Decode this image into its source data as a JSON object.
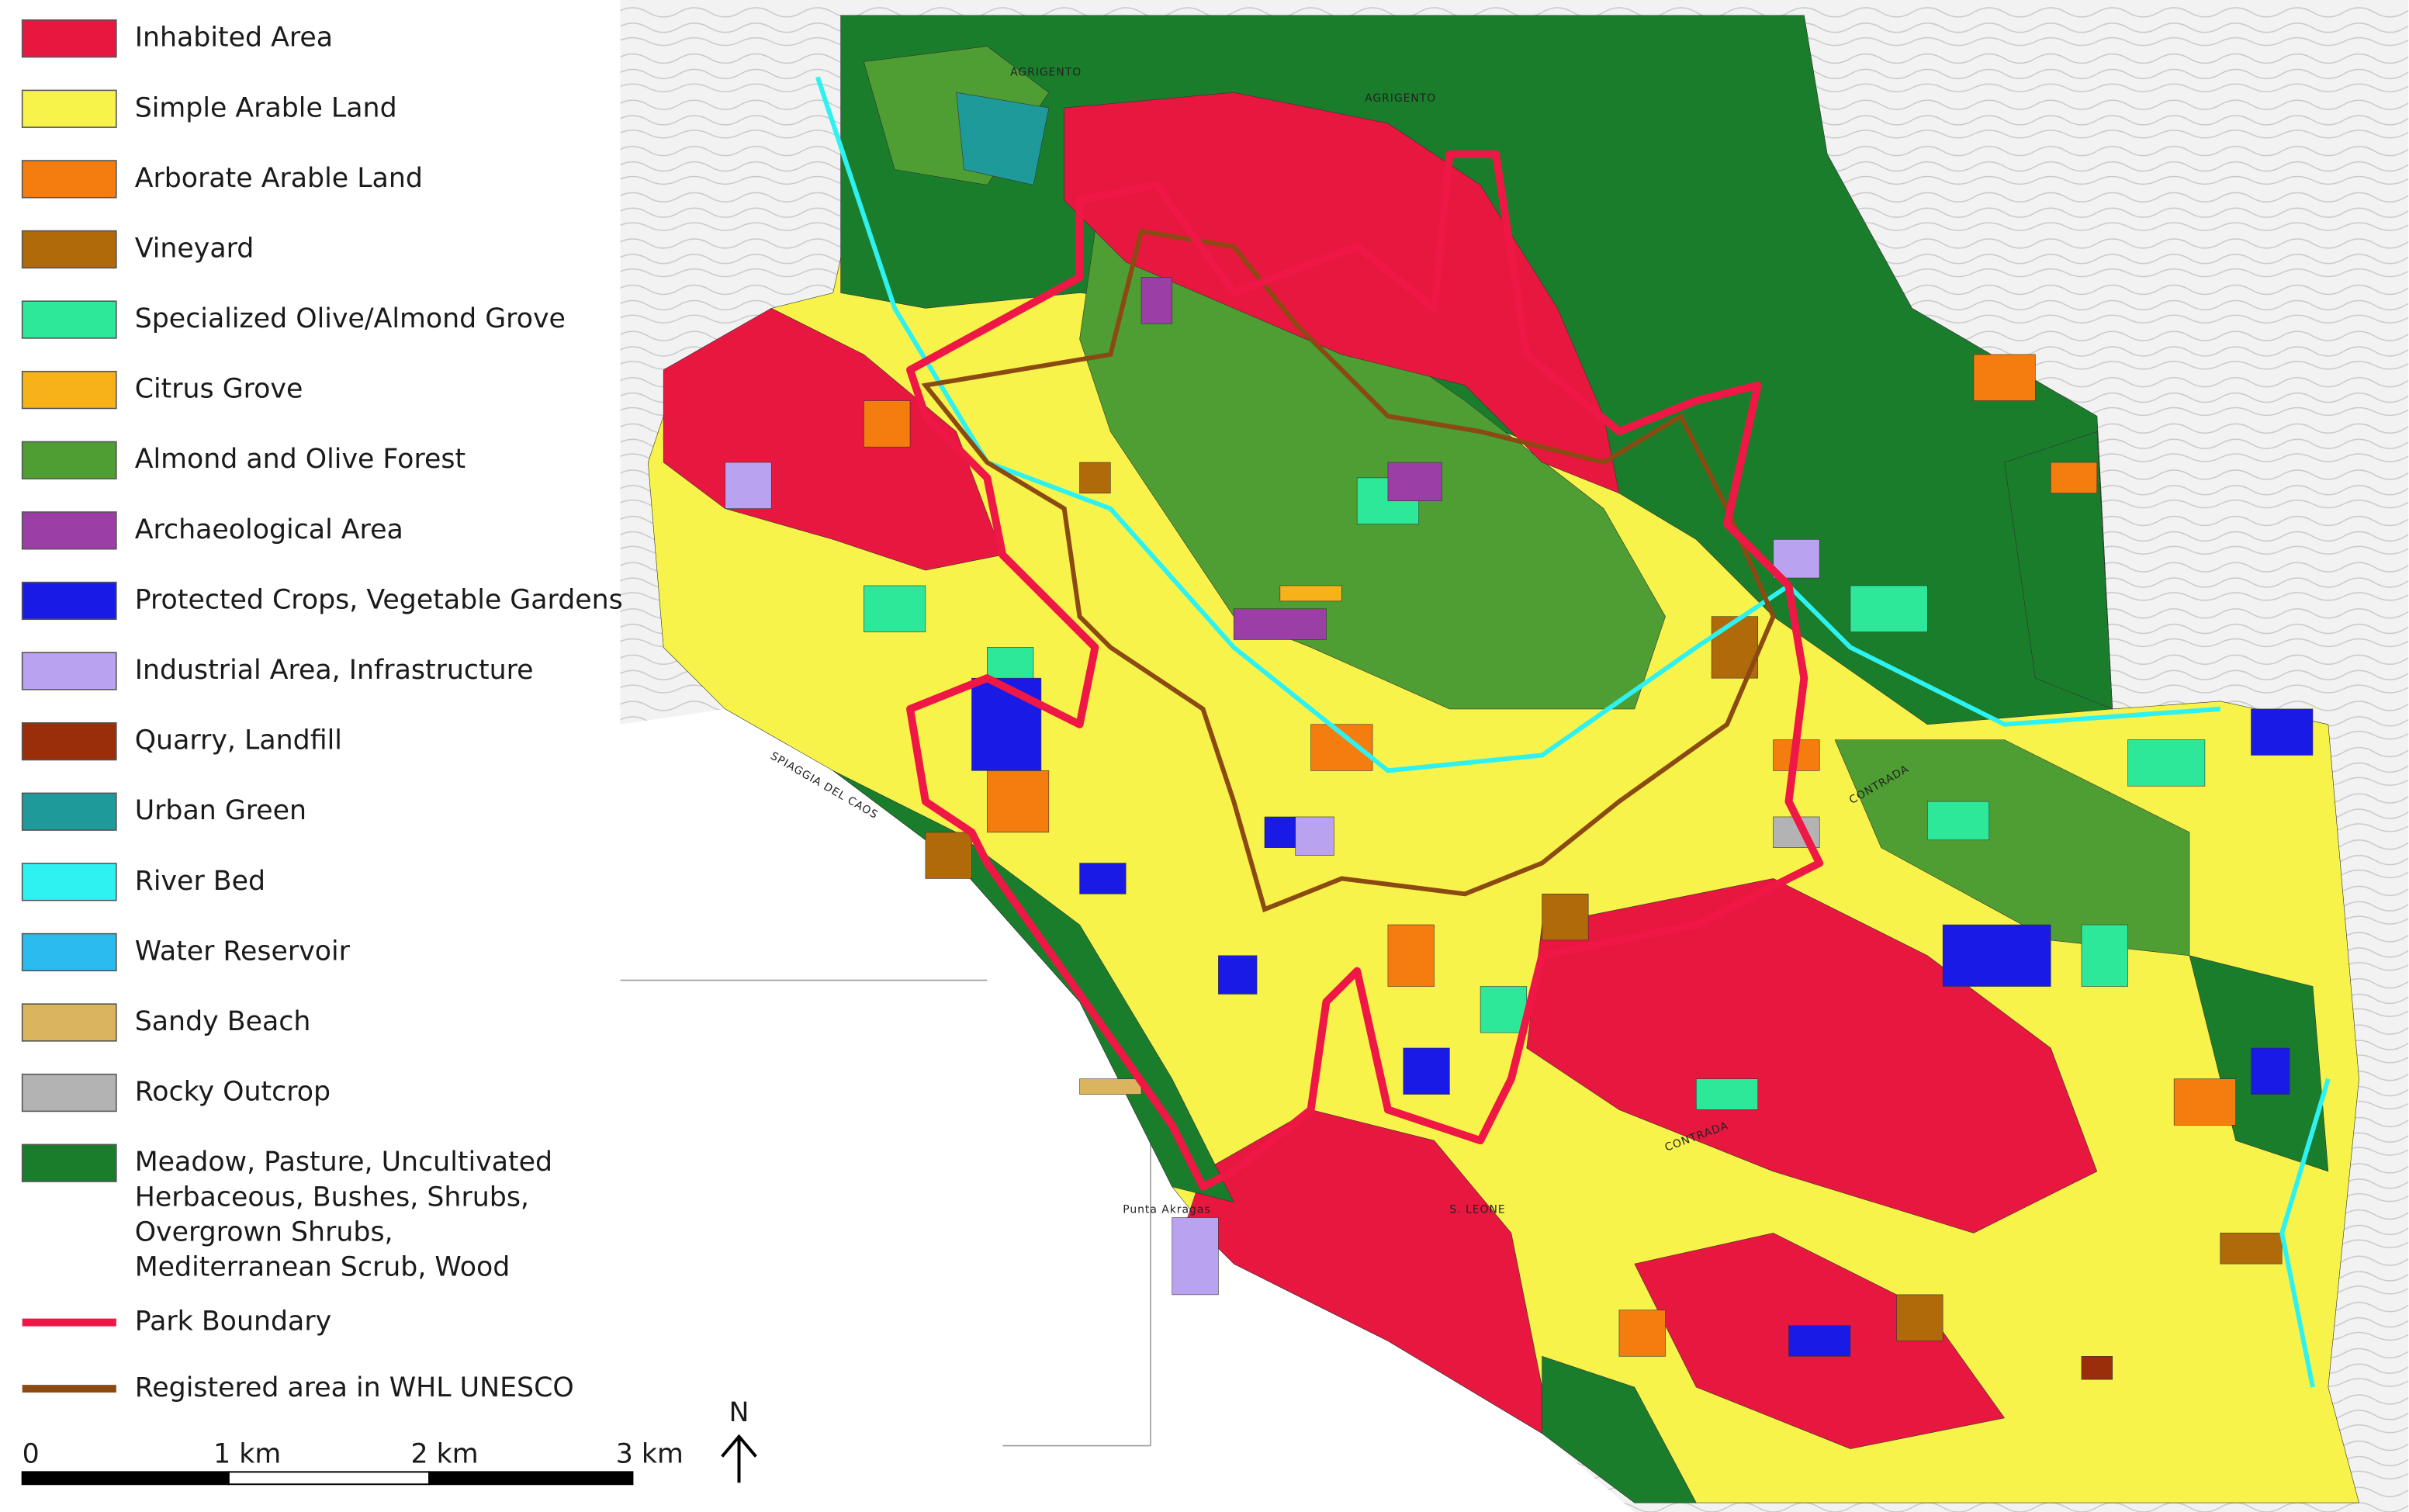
{
  "legend": {
    "items": [
      {
        "label": "Inhabited Area",
        "color": "#e8173f",
        "kind": "area"
      },
      {
        "label": "Simple Arable Land",
        "color": "#f7f34a",
        "kind": "area"
      },
      {
        "label": "Arborate Arable Land",
        "color": "#f57c0f",
        "kind": "area"
      },
      {
        "label": "Vineyard",
        "color": "#b06a0a",
        "kind": "area"
      },
      {
        "label": "Specialized Olive/Almond Grove",
        "color": "#2ee89a",
        "kind": "area"
      },
      {
        "label": "Citrus Grove",
        "color": "#f7b21a",
        "kind": "area"
      },
      {
        "label": "Almond and Olive Forest",
        "color": "#4e9e33",
        "kind": "area"
      },
      {
        "label": "Archaeological Area",
        "color": "#9b3fa6",
        "kind": "area"
      },
      {
        "label": "Protected Crops, Vegetable Gardens",
        "color": "#1a1ae6",
        "kind": "area"
      },
      {
        "label": "Industrial Area, Infrastructure",
        "color": "#b9a2f0",
        "kind": "area"
      },
      {
        "label": "Quarry, Landfill",
        "color": "#9a2d0a",
        "kind": "area"
      },
      {
        "label": "Urban Green",
        "color": "#1f9a9a",
        "kind": "area"
      },
      {
        "label": "River Bed",
        "color": "#2ef2f2",
        "kind": "area"
      },
      {
        "label": "Water Reservoir",
        "color": "#2abcee",
        "kind": "area"
      },
      {
        "label": "Sandy Beach",
        "color": "#dbb45e",
        "kind": "area"
      },
      {
        "label": "Rocky Outcrop",
        "color": "#b3b3b3",
        "kind": "area"
      },
      {
        "label": [
          "Meadow, Pasture, Uncultivated",
          "Herbaceous, Bushes, Shrubs,",
          "Overgrown Shrubs,",
          "Mediterranean Scrub, Wood"
        ],
        "color": "#1a7d2c",
        "kind": "area"
      },
      {
        "label": "Park Boundary",
        "color": "#ee1745",
        "kind": "line"
      },
      {
        "label": "Registered area in WHL UNESCO",
        "color": "#8b4a12",
        "kind": "line"
      }
    ]
  },
  "scale_bar": {
    "labels": [
      "0",
      "1 km",
      "2 km",
      "3 km"
    ]
  },
  "north_label": "N",
  "map_labels": [
    "AGRIGENTO",
    "AGRIGENTO",
    "CONTRADA",
    "CONTRADA",
    "S. LEONE",
    "Punta Akragas",
    "SPIAGGIA DEL CAOS"
  ]
}
